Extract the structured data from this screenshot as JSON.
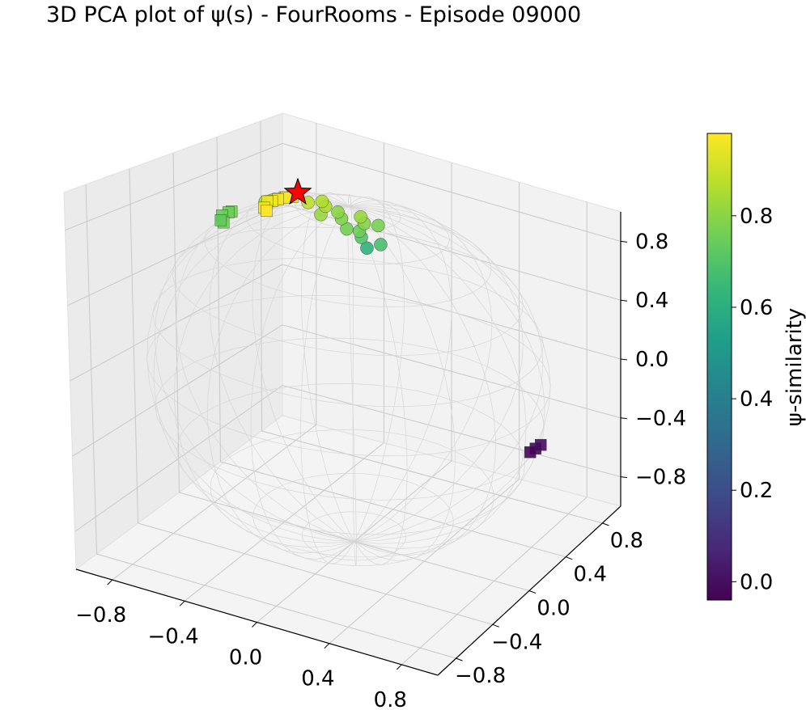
{
  "chart_data": {
    "type": "scatter",
    "title": "3D PCA plot of ψ(s) - FourRooms - Episode 09000",
    "xlabel": "",
    "ylabel": "",
    "zlabel": "",
    "x_ticks": [
      "−0.8",
      "−0.4",
      "0.0",
      "0.4",
      "0.8"
    ],
    "y_ticks": [
      "−0.8",
      "−0.4",
      "0.0",
      "0.4",
      "0.8"
    ],
    "z_ticks": [
      "−0.8",
      "−0.4",
      "0.0",
      "0.4",
      "0.8"
    ],
    "xlim": [
      -1,
      1
    ],
    "ylim": [
      -1,
      1
    ],
    "zlim": [
      -1,
      1
    ],
    "grid": true,
    "unit_sphere_wireframe": true,
    "colormap": "viridis",
    "colorbar": {
      "label": "ψ-similarity",
      "ticks": [
        "0.0",
        "0.2",
        "0.4",
        "0.6",
        "0.8"
      ],
      "range": [
        -0.04,
        0.98
      ]
    },
    "reference_marker": {
      "shape": "star",
      "color": "#ff0000",
      "x": -0.3,
      "y": 0.02,
      "z": 0.98
    },
    "series": [
      {
        "marker": "circle",
        "points": [
          {
            "x": 0.28,
            "y": -0.3,
            "z": 0.92,
            "s": 0.62
          },
          {
            "x": 0.22,
            "y": -0.25,
            "z": 0.95,
            "s": 0.7
          },
          {
            "x": 0.18,
            "y": -0.2,
            "z": 0.96,
            "s": 0.75
          },
          {
            "x": 0.3,
            "y": -0.2,
            "z": 0.92,
            "s": 0.68
          },
          {
            "x": 0.12,
            "y": -0.22,
            "z": 0.96,
            "s": 0.76
          },
          {
            "x": 0.05,
            "y": -0.15,
            "z": 0.98,
            "s": 0.78
          },
          {
            "x": 0.0,
            "y": -0.1,
            "z": 0.99,
            "s": 0.8
          },
          {
            "x": -0.05,
            "y": -0.18,
            "z": 0.98,
            "s": 0.82
          },
          {
            "x": 0.15,
            "y": -0.1,
            "z": 0.97,
            "s": 0.79
          },
          {
            "x": 0.1,
            "y": -0.05,
            "z": 0.98,
            "s": 0.82
          },
          {
            "x": -0.1,
            "y": -0.05,
            "z": 0.98,
            "s": 0.85
          },
          {
            "x": -0.15,
            "y": 0.0,
            "z": 0.98,
            "s": 0.86
          },
          {
            "x": -0.2,
            "y": -0.05,
            "z": 0.97,
            "s": 0.88
          },
          {
            "x": 0.2,
            "y": -0.05,
            "z": 0.96,
            "s": 0.77
          },
          {
            "x": -0.55,
            "y": 0.12,
            "z": 0.82,
            "s": 0.82
          },
          {
            "x": -0.5,
            "y": 0.1,
            "z": 0.85,
            "s": 0.85
          }
        ]
      },
      {
        "marker": "square",
        "points": [
          {
            "x": -0.35,
            "y": 0.05,
            "z": 0.93,
            "s": 0.95
          },
          {
            "x": -0.4,
            "y": 0.06,
            "z": 0.91,
            "s": 0.96
          },
          {
            "x": -0.45,
            "y": 0.08,
            "z": 0.88,
            "s": 0.94
          },
          {
            "x": -0.38,
            "y": 0.04,
            "z": 0.92,
            "s": 0.97
          },
          {
            "x": -0.42,
            "y": 0.03,
            "z": 0.9,
            "s": 0.97
          },
          {
            "x": -0.48,
            "y": 0.07,
            "z": 0.86,
            "s": 0.96
          },
          {
            "x": -0.52,
            "y": 0.09,
            "z": 0.84,
            "s": 0.95
          },
          {
            "x": -0.52,
            "y": 0.06,
            "z": 0.81,
            "s": 0.96
          },
          {
            "x": -0.5,
            "y": 0.05,
            "z": 0.8,
            "s": 0.98
          },
          {
            "x": -0.72,
            "y": 0.08,
            "z": 0.72,
            "s": 0.76
          },
          {
            "x": -0.75,
            "y": 0.1,
            "z": 0.7,
            "s": 0.75
          },
          {
            "x": -0.8,
            "y": 0.12,
            "z": 0.66,
            "s": 0.74
          },
          {
            "x": -0.78,
            "y": 0.1,
            "z": 0.63,
            "s": 0.76
          },
          {
            "x": -0.82,
            "y": 0.14,
            "z": 0.62,
            "s": 0.73
          },
          {
            "x": 0.82,
            "y": 0.42,
            "z": -0.38,
            "s": -0.02
          },
          {
            "x": 0.8,
            "y": 0.4,
            "z": -0.4,
            "s": -0.03
          },
          {
            "x": 0.84,
            "y": 0.44,
            "z": -0.36,
            "s": -0.01
          }
        ]
      }
    ]
  }
}
